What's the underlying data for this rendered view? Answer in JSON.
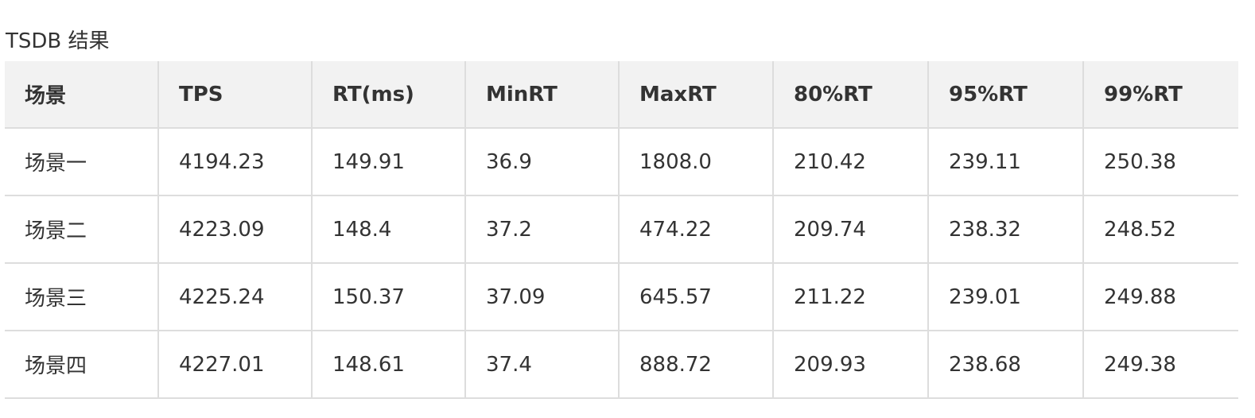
{
  "title": "TSDB 结果",
  "table": {
    "headers": [
      "场景",
      "TPS",
      "RT(ms)",
      "MinRT",
      "MaxRT",
      "80%RT",
      "95%RT",
      "99%RT"
    ],
    "rows": [
      [
        "场景一",
        "4194.23",
        "149.91",
        "36.9",
        "1808.0",
        "210.42",
        "239.11",
        "250.38"
      ],
      [
        "场景二",
        "4223.09",
        "148.4",
        "37.2",
        "474.22",
        "209.74",
        "238.32",
        "248.52"
      ],
      [
        "场景三",
        "4225.24",
        "150.37",
        "37.09",
        "645.57",
        "211.22",
        "239.01",
        "249.88"
      ],
      [
        "场景四",
        "4227.01",
        "148.61",
        "37.4",
        "888.72",
        "209.93",
        "238.68",
        "249.38"
      ]
    ]
  },
  "colors": {
    "header_background": "#f2f2f2",
    "border": "#dddddd",
    "text": "#333333"
  }
}
